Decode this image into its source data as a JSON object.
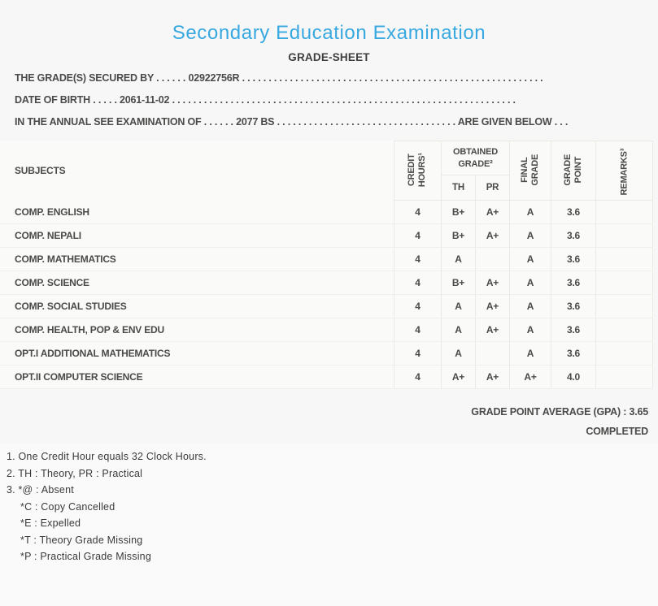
{
  "colors": {
    "title_blue": "#38a8e0",
    "text_dark": "#4a4a48",
    "background": "#f7f7f8"
  },
  "header": {
    "title": "Secondary Education Examination",
    "subtitle": "GRADE-SHEET"
  },
  "info_lines": [
    {
      "label": "THE GRADE(S) SECURED BY",
      "dots_a": ". . . . . .",
      "value": "02922756R",
      "dots_b": ". . . . . . . . . . . . . . . . . . . . . . . . . . . . . . . . . . . . . . . . . . . . . . . . . . . . . . . . ."
    },
    {
      "label": "DATE OF BIRTH",
      "dots_a": ". . . . .",
      "value": "2061-11-02",
      "dots_b": ". . . . . . . . . . . . . . . . . . . . . . . . . . . . . . . . . . . . . . . . . . . . . . . . . . . . . . . . . . . . . . . . ."
    },
    {
      "label": "IN THE ANNUAL SEE EXAMINATION OF",
      "dots_a": ". . . . . .",
      "value": "2077 BS",
      "dots_b": ". . . . . . . . . . . . . . . . . . . . . . . . . . . . . . . . . .",
      "suffix": "ARE GIVEN BELOW",
      "dots_c": ". . ."
    }
  ],
  "table": {
    "headers": {
      "subjects": "SUBJECTS",
      "credit_hours": "CREDIT HOURS¹",
      "obtained_grade": "OBTAINED GRADE²",
      "th": "TH",
      "pr": "PR",
      "final_grade": "FINAL GRADE",
      "grade_point": "GRADE POINT",
      "remarks": "REMARKS³"
    },
    "rows": [
      {
        "subject": "COMP. ENGLISH",
        "credit_hours": "4",
        "th": "B+",
        "pr": "A+",
        "final_grade": "A",
        "grade_point": "3.6",
        "remarks": ""
      },
      {
        "subject": "COMP. NEPALI",
        "credit_hours": "4",
        "th": "B+",
        "pr": "A+",
        "final_grade": "A",
        "grade_point": "3.6",
        "remarks": ""
      },
      {
        "subject": "COMP. MATHEMATICS",
        "credit_hours": "4",
        "th": "A",
        "pr": "",
        "final_grade": "A",
        "grade_point": "3.6",
        "remarks": ""
      },
      {
        "subject": "COMP. SCIENCE",
        "credit_hours": "4",
        "th": "B+",
        "pr": "A+",
        "final_grade": "A",
        "grade_point": "3.6",
        "remarks": ""
      },
      {
        "subject": "COMP. SOCIAL STUDIES",
        "credit_hours": "4",
        "th": "A",
        "pr": "A+",
        "final_grade": "A",
        "grade_point": "3.6",
        "remarks": ""
      },
      {
        "subject": "COMP. HEALTH, POP & ENV EDU",
        "credit_hours": "4",
        "th": "A",
        "pr": "A+",
        "final_grade": "A",
        "grade_point": "3.6",
        "remarks": ""
      },
      {
        "subject": "OPT.I ADDITIONAL MATHEMATICS",
        "credit_hours": "4",
        "th": "A",
        "pr": "",
        "final_grade": "A",
        "grade_point": "3.6",
        "remarks": ""
      },
      {
        "subject": "OPT.II COMPUTER SCIENCE",
        "credit_hours": "4",
        "th": "A+",
        "pr": "A+",
        "final_grade": "A+",
        "grade_point": "4.0",
        "remarks": ""
      }
    ]
  },
  "summary": {
    "gpa_line": "GRADE POINT AVERAGE (GPA) : 3.65",
    "status": "COMPLETED"
  },
  "footnotes": [
    {
      "text": "1. One Credit Hour equals 32 Clock Hours."
    },
    {
      "text": "2. TH : Theory, PR : Practical"
    },
    {
      "text": "3. *@ : Absent"
    },
    {
      "text": "*C : Copy Cancelled"
    },
    {
      "text": "*E : Expelled"
    },
    {
      "text": "*T : Theory Grade Missing"
    },
    {
      "text": "*P : Practical Grade Missing"
    }
  ]
}
